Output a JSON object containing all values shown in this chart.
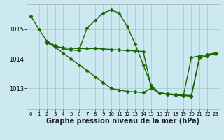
{
  "bg_color": "#cce8f0",
  "line_color": "#1a6600",
  "marker": "D",
  "markersize": 2.5,
  "linewidth": 1.0,
  "xlabel": "Graphe pression niveau de la mer (hPa)",
  "xlabel_fontsize": 7,
  "xticks": [
    0,
    1,
    2,
    3,
    4,
    5,
    6,
    7,
    8,
    9,
    10,
    11,
    12,
    13,
    14,
    15,
    16,
    17,
    18,
    19,
    20,
    21,
    22,
    23
  ],
  "ylim": [
    1012.3,
    1015.85
  ],
  "yticks": [
    1013,
    1014,
    1015
  ],
  "grid_color": "#99ccbb",
  "line1_x": [
    0,
    1,
    2,
    3,
    4,
    5,
    6,
    7,
    8,
    9,
    10,
    11,
    12,
    13,
    14,
    15,
    16,
    17,
    18,
    19,
    20,
    21,
    22,
    23
  ],
  "line1_y": [
    1015.45,
    1015.0,
    1014.6,
    1014.45,
    1014.35,
    1014.3,
    1014.28,
    1015.05,
    1015.3,
    1015.55,
    1015.65,
    1015.55,
    1015.1,
    1014.5,
    1013.8,
    1013.1,
    1012.85,
    1012.8,
    1012.78,
    1012.75,
    1014.05,
    1014.1,
    1014.15,
    1014.2
  ],
  "line2_x": [
    2,
    3,
    4,
    5,
    6,
    7,
    8,
    9,
    10,
    11,
    12,
    13,
    14,
    15,
    16,
    17,
    18,
    19,
    20,
    21,
    22,
    23
  ],
  "line2_y": [
    1014.55,
    1014.42,
    1014.38,
    1014.36,
    1014.35,
    1014.35,
    1014.35,
    1014.34,
    1014.32,
    1014.3,
    1014.28,
    1014.27,
    1014.25,
    1013.05,
    1012.85,
    1012.82,
    1012.8,
    1012.78,
    1012.76,
    1014.05,
    1014.1,
    1014.18
  ],
  "line3_x": [
    2,
    3,
    4,
    5,
    6,
    7,
    8,
    9,
    10,
    11,
    12,
    13,
    14,
    15,
    16,
    17,
    18,
    19,
    20,
    21,
    22,
    23
  ],
  "line3_y": [
    1014.55,
    1014.4,
    1014.2,
    1014.0,
    1013.8,
    1013.6,
    1013.4,
    1013.2,
    1013.0,
    1012.95,
    1012.9,
    1012.88,
    1012.86,
    1013.0,
    1012.85,
    1012.82,
    1012.8,
    1012.77,
    1012.73,
    1014.02,
    1014.12,
    1014.2
  ]
}
